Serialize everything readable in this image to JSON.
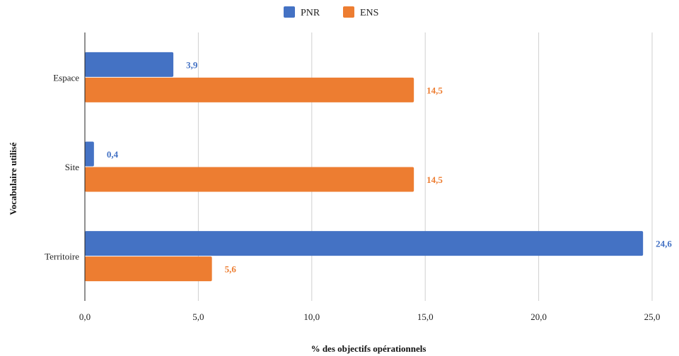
{
  "chart_data": {
    "type": "bar",
    "orientation": "horizontal",
    "categories": [
      "Espace",
      "Site",
      "Territoire"
    ],
    "series": [
      {
        "name": "PNR",
        "values": [
          3.9,
          0.4,
          24.6
        ],
        "labels": [
          "3,9",
          "0,4",
          "24,6"
        ],
        "color": "#4472C4"
      },
      {
        "name": "ENS",
        "values": [
          14.5,
          14.5,
          5.6
        ],
        "labels": [
          "14,5",
          "14,5",
          "5,6"
        ],
        "color": "#ED7D31"
      }
    ],
    "xlabel": "% des objectifs opérationnels",
    "ylabel": "Vocabulaire utilisé",
    "xlim": [
      0,
      25
    ],
    "xticks": [
      0,
      5,
      10,
      15,
      20,
      25
    ],
    "xtick_labels": [
      "0,0",
      "5,0",
      "10,0",
      "15,0",
      "20,0",
      "25,0"
    ],
    "grid": true,
    "legend_position": "top"
  }
}
